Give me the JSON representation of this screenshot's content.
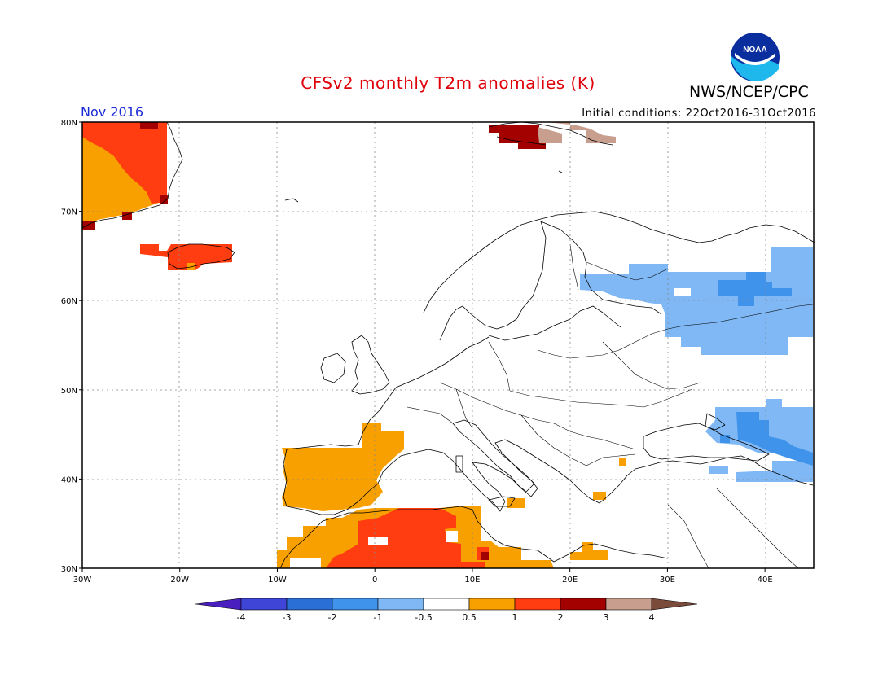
{
  "header": {
    "title": "CFSv2 monthly T2m anomalies (K)",
    "agency": "NWS/NCEP/CPC",
    "logo_text": "NOAA",
    "period": "Nov 2016",
    "initial_conditions": "Initial conditions: 22Oct2016-31Oct2016"
  },
  "map": {
    "lon_range": [
      -30,
      45
    ],
    "lat_range": [
      30,
      80
    ],
    "lat_labels": [
      "80N",
      "70N",
      "60N",
      "50N",
      "40N",
      "30N"
    ],
    "lon_labels": [
      "30W",
      "20W",
      "10W",
      "0",
      "10E",
      "20E",
      "30E",
      "40E"
    ],
    "regions": [
      {
        "name": "Greenland east coast",
        "category": "1 to 2"
      },
      {
        "name": "Iceland",
        "category": "1 to 2"
      },
      {
        "name": "Svalbard",
        "category": "2 to 4"
      },
      {
        "name": "Iberian Peninsula",
        "category": "0.5 to 1"
      },
      {
        "name": "Northwest Africa",
        "category": "1 to 2"
      },
      {
        "name": "Western Russia",
        "category": "-1 to -0.5"
      },
      {
        "name": "Black Sea / Caucasus",
        "category": "-1 to -0.5"
      }
    ]
  },
  "colorbar": {
    "labels": [
      "-4",
      "-3",
      "-2",
      "-1",
      "-0.5",
      "0.5",
      "1",
      "2",
      "3",
      "4"
    ],
    "colors": [
      "#4a1fbf",
      "#3f45d6",
      "#2a6fd6",
      "#3f93ea",
      "#7fb8f5",
      "#ffffff",
      "#f7a000",
      "#ff3d10",
      "#a30000",
      "#c89e8f",
      "#7a4a3a"
    ]
  }
}
